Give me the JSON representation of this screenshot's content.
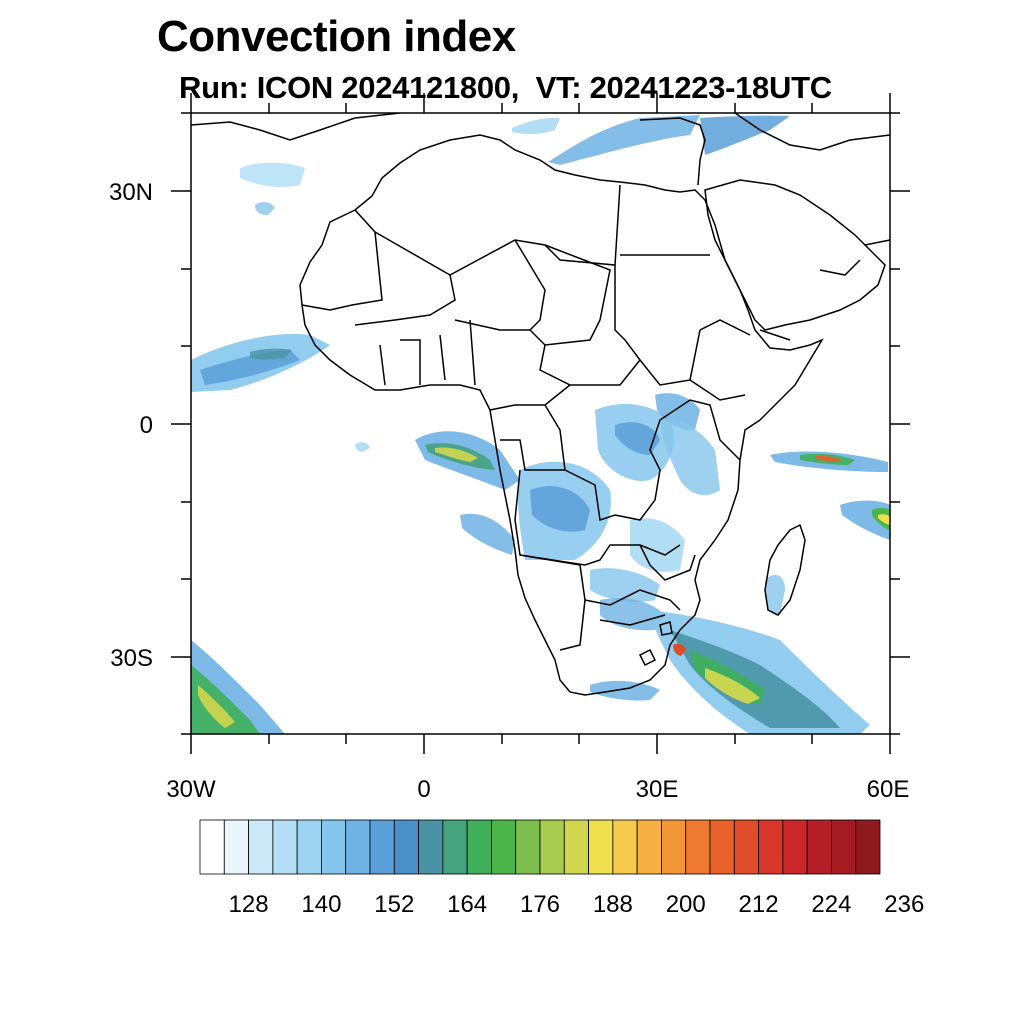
{
  "title": "Convection index",
  "subtitle": "Run: ICON 2024121800,  VT: 20241223-18UTC",
  "map": {
    "lon_range": [
      "30W",
      "60E"
    ],
    "lat_range": [
      "40S",
      "40N"
    ],
    "lon_tick_labels": [
      "30W",
      "0",
      "30E",
      "60E"
    ],
    "lat_tick_labels": [
      "30N",
      "0",
      "30S"
    ],
    "coastline_color": "#000000"
  },
  "colorbar": {
    "levels": [
      "128",
      "140",
      "152",
      "164",
      "176",
      "188",
      "200",
      "212",
      "224",
      "236"
    ],
    "colors": [
      "#ffffff",
      "#eaf6fc",
      "#cde9f8",
      "#b4def6",
      "#9dd4f2",
      "#86c6ec",
      "#6fb3e4",
      "#5b9fd8",
      "#4a8fc7",
      "#4a93a4",
      "#46a27f",
      "#3faf5a",
      "#4bb54b",
      "#7dbf4f",
      "#a7cb4f",
      "#d0d74f",
      "#f0e04e",
      "#f7c94c",
      "#f7b044",
      "#f49739",
      "#ee7a31",
      "#e8612b",
      "#e04b29",
      "#d83628",
      "#c92729",
      "#b61e27",
      "#a51b22",
      "#8e1a1d"
    ]
  }
}
